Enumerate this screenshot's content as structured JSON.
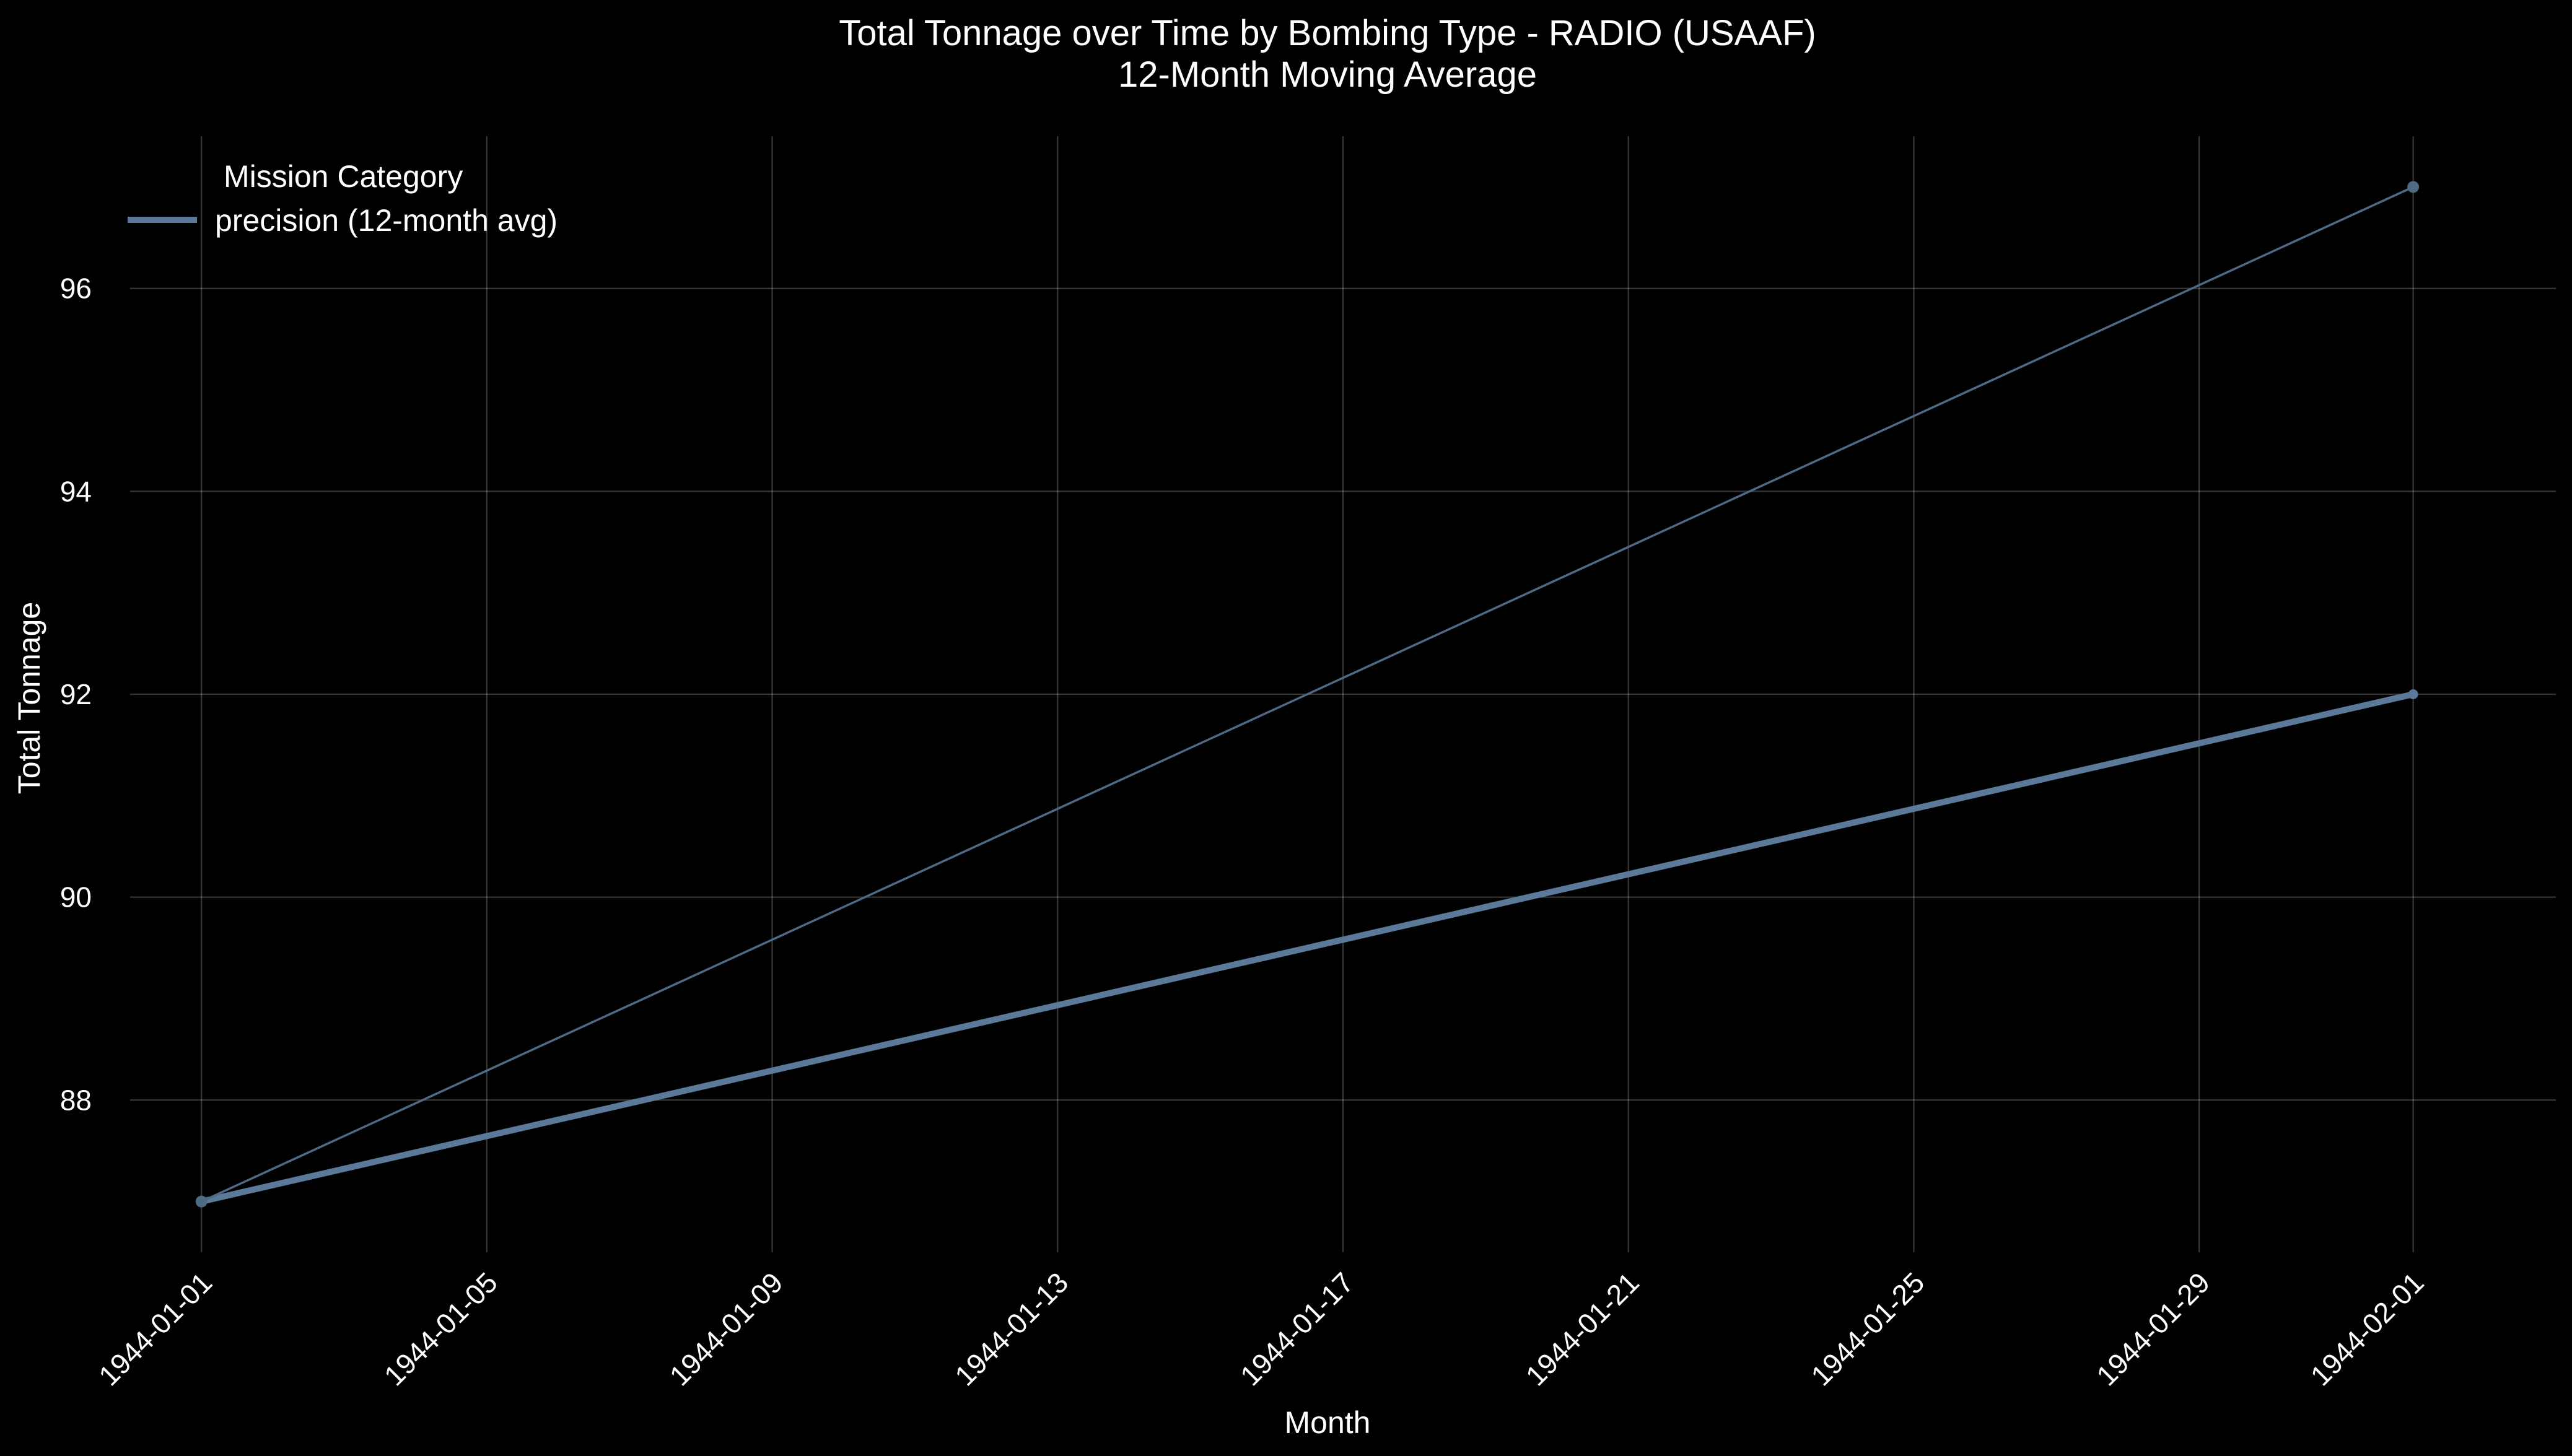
{
  "chart_data": {
    "type": "line",
    "title": "Total Tonnage over Time by Bombing Type - RADIO (USAAF)",
    "subtitle": "12-Month Moving Average",
    "xlabel": "Month",
    "ylabel": "Total Tonnage",
    "x_ticks": [
      "1944-01-01",
      "1944-01-05",
      "1944-01-09",
      "1944-01-13",
      "1944-01-17",
      "1944-01-21",
      "1944-01-25",
      "1944-01-29",
      "1944-02-01"
    ],
    "y_ticks": [
      88,
      90,
      92,
      94,
      96
    ],
    "xlim": [
      "1943-12-31",
      "1944-02-03"
    ],
    "ylim": [
      86.5,
      97.5
    ],
    "grid": true,
    "legend": {
      "title": "Mission Category",
      "placement": "top-left"
    },
    "series": [
      {
        "name": "precision (12-month avg)",
        "style": "thick",
        "in_legend": true,
        "color": "#5b7a99",
        "x": [
          "1944-01-01",
          "1944-02-01"
        ],
        "values": [
          87,
          92
        ]
      },
      {
        "style": "thin-with-markers",
        "in_legend": false,
        "color": "#4f6a85",
        "x": [
          "1944-01-01",
          "1944-02-01"
        ],
        "values": [
          87,
          97
        ]
      }
    ]
  }
}
